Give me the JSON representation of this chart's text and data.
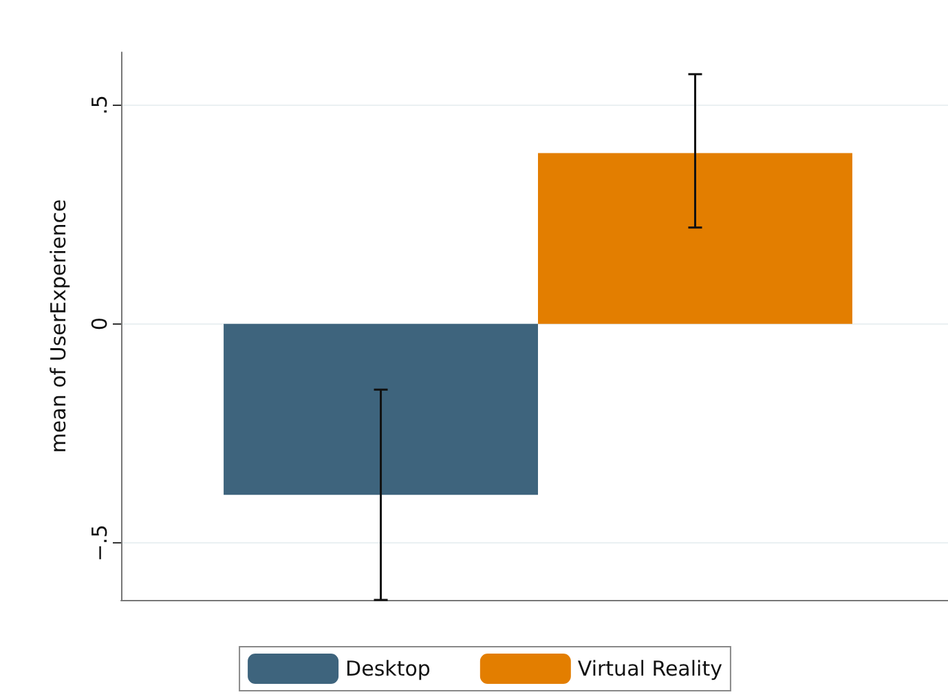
{
  "chart_data": {
    "type": "bar",
    "ylabel": "mean of UserExperience",
    "categories": [
      null
    ],
    "series": [
      {
        "name": "Desktop",
        "color": "#3e647d",
        "values": [
          -0.39
        ],
        "errors": [
          [
            -0.63,
            -0.15
          ]
        ]
      },
      {
        "name": "Virtual Reality",
        "color": "#e37e00",
        "values": [
          0.39
        ],
        "errors": [
          [
            0.22,
            0.57
          ]
        ]
      }
    ],
    "ylim": [
      -0.63,
      0.62
    ],
    "yticks": [
      {
        "value": -0.5,
        "label": "−.5"
      },
      {
        "value": 0,
        "label": "0"
      },
      {
        "value": 0.5,
        "label": ".5"
      }
    ],
    "grid": "y",
    "legend": "bottom"
  }
}
